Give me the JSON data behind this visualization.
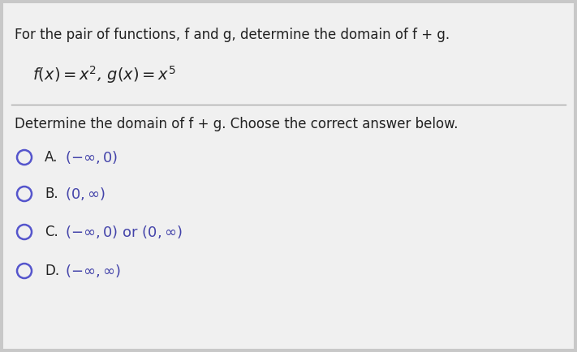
{
  "background_color": "#c8c8c8",
  "panel_color": "#f0f0f0",
  "title_line": "For the pair of functions, f and g, determine the domain of f + g.",
  "question_line": "Determine the domain of f + g. Choose the correct answer below.",
  "option_labels": [
    "A.",
    "B.",
    "C.",
    "D."
  ],
  "option_texts": [
    "(-∞,0)",
    "(0,∞)",
    "(-∞,0) or (0,∞)",
    "(-∞,∞)"
  ],
  "circle_color": "#5555cc",
  "text_color": "#222222",
  "option_label_color": "#333333",
  "option_text_color": "#4444aa",
  "divider_color": "#aaaaaa",
  "title_fontsize": 12,
  "func_fontsize": 13,
  "question_fontsize": 12,
  "option_fontsize": 12
}
